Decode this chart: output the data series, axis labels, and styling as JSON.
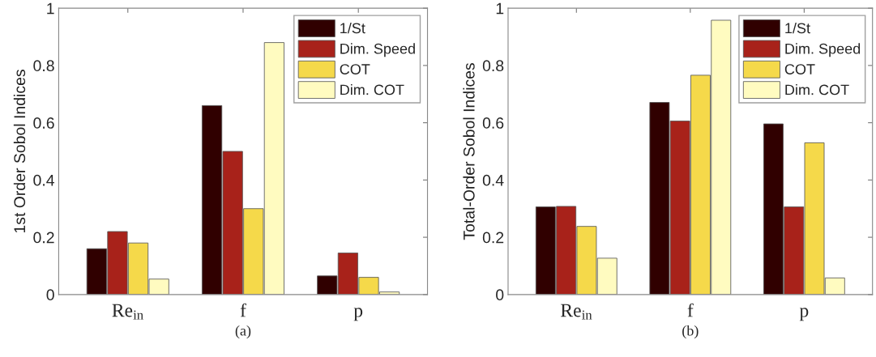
{
  "chart_data": [
    {
      "type": "bar",
      "xlabel": "(a)",
      "ylabel": "1st Order Sobol Indices",
      "categories": [
        "Re$_{in}$",
        "f",
        "p"
      ],
      "series": [
        {
          "name": "1/St",
          "color": "#300000",
          "values": [
            0.16,
            0.66,
            0.065
          ]
        },
        {
          "name": "Dim. Speed",
          "color": "#a8221a",
          "values": [
            0.22,
            0.5,
            0.145
          ]
        },
        {
          "name": "COT",
          "color": "#f5d94a",
          "values": [
            0.18,
            0.3,
            0.06
          ]
        },
        {
          "name": "Dim. COT",
          "color": "#fffbc0",
          "values": [
            0.054,
            0.88,
            0.009
          ]
        }
      ],
      "ylim": [
        0,
        1
      ],
      "yticks": [
        0,
        {
          "value": 0.2,
          "label": "0.2"
        },
        {
          "value": 0.4,
          "label": "0.4"
        },
        {
          "value": 0.6,
          "label": "0.6"
        },
        {
          "value": 0.8,
          "label": "0.8"
        },
        1
      ],
      "grid": false,
      "legend": "top right"
    },
    {
      "type": "bar",
      "xlabel": "(b)",
      "ylabel": "Total-Order Sobol Indices",
      "categories": [
        "Re$_{in}$",
        "f",
        "p"
      ],
      "series": [
        {
          "name": "1/St",
          "color": "#300000",
          "values": [
            0.306,
            0.671,
            0.596
          ]
        },
        {
          "name": "Dim. Speed",
          "color": "#a8221a",
          "values": [
            0.308,
            0.606,
            0.306
          ]
        },
        {
          "name": "COT",
          "color": "#f5d94a",
          "values": [
            0.238,
            0.766,
            0.53
          ]
        },
        {
          "name": "Dim. COT",
          "color": "#fffbc0",
          "values": [
            0.127,
            0.958,
            0.058
          ]
        }
      ],
      "ylim": [
        0,
        1
      ],
      "yticks": [
        0,
        {
          "value": 0.2,
          "label": "0.2"
        },
        {
          "value": 0.4,
          "label": "0.4"
        },
        {
          "value": 0.6,
          "label": "0.6"
        },
        {
          "value": 0.8,
          "label": "0.8"
        },
        1
      ],
      "grid": false,
      "legend": "top right"
    }
  ]
}
